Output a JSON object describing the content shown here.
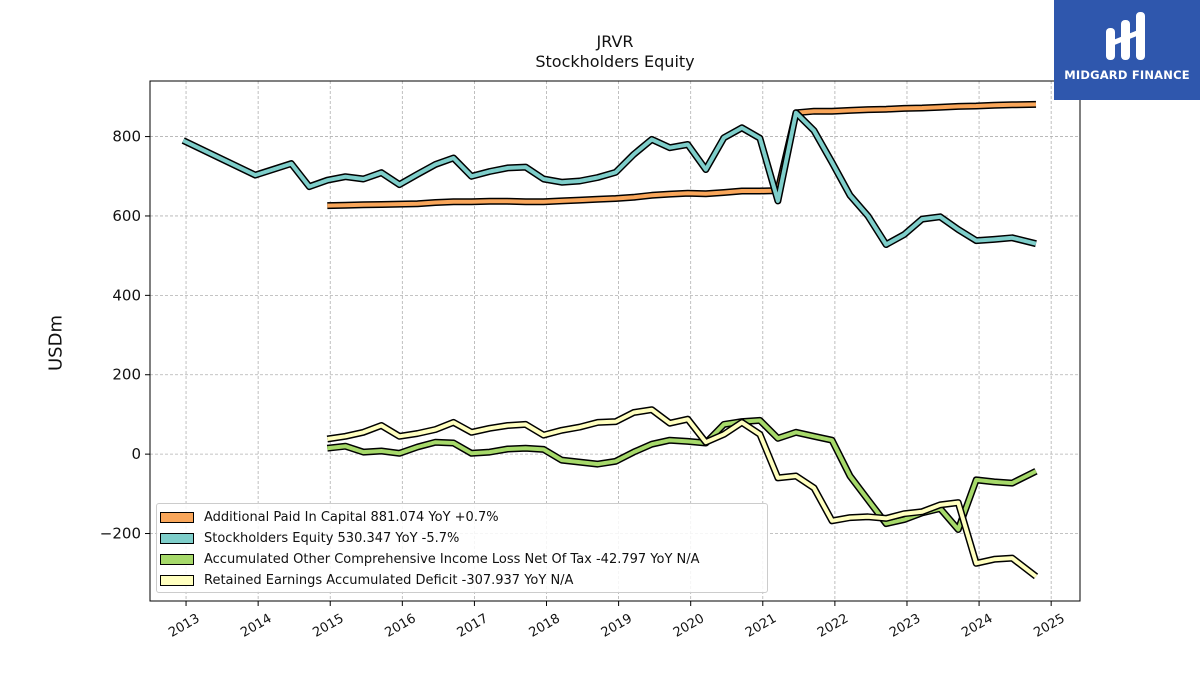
{
  "header": {
    "title": "JRVR",
    "subtitle": "Stockholders  Equity",
    "ylabel": "USDm"
  },
  "logo": {
    "name": "MIDGARD FINANCE",
    "icon": "midgard-logo-icon",
    "color": "#2f57ad"
  },
  "chart_data": {
    "type": "line",
    "title": "JRVR",
    "subtitle": "Stockholders  Equity",
    "xlabel": "",
    "ylabel": "USDm",
    "xlim": [
      2012.5,
      2025.4
    ],
    "ylim": [
      -370,
      940
    ],
    "x_ticks": [
      2013,
      2014,
      2015,
      2016,
      2017,
      2018,
      2019,
      2020,
      2021,
      2022,
      2023,
      2024,
      2025
    ],
    "y_ticks": [
      -200,
      0,
      200,
      400,
      600,
      800
    ],
    "y_tick_labels": [
      "−200",
      "0",
      "200",
      "400",
      "600",
      "800"
    ],
    "grid": true,
    "legend_position": "lower-left",
    "series": [
      {
        "name": "Additional Paid In Capital",
        "legend": "Additional Paid In Capital  881.074 YoY +0.7%",
        "color": "#f9a65a",
        "points": [
          [
            2014.96,
            626
          ],
          [
            2015.21,
            627
          ],
          [
            2015.46,
            628
          ],
          [
            2015.71,
            629
          ],
          [
            2015.96,
            630
          ],
          [
            2016.21,
            631
          ],
          [
            2016.46,
            634
          ],
          [
            2016.71,
            636
          ],
          [
            2016.96,
            636
          ],
          [
            2017.21,
            637
          ],
          [
            2017.46,
            637
          ],
          [
            2017.71,
            636
          ],
          [
            2017.96,
            636
          ],
          [
            2018.21,
            638
          ],
          [
            2018.46,
            640
          ],
          [
            2018.71,
            642
          ],
          [
            2018.96,
            644
          ],
          [
            2019.21,
            647
          ],
          [
            2019.46,
            652
          ],
          [
            2019.71,
            655
          ],
          [
            2019.96,
            657
          ],
          [
            2020.21,
            656
          ],
          [
            2020.46,
            659
          ],
          [
            2020.71,
            663
          ],
          [
            2020.96,
            663
          ],
          [
            2021.21,
            664
          ],
          [
            2021.46,
            860
          ],
          [
            2021.71,
            864
          ],
          [
            2021.96,
            864
          ],
          [
            2022.21,
            866
          ],
          [
            2022.46,
            868
          ],
          [
            2022.71,
            869
          ],
          [
            2022.96,
            871
          ],
          [
            2023.21,
            872
          ],
          [
            2023.46,
            874
          ],
          [
            2023.71,
            876
          ],
          [
            2023.96,
            877
          ],
          [
            2024.21,
            879
          ],
          [
            2024.46,
            880
          ],
          [
            2024.79,
            881
          ]
        ]
      },
      {
        "name": "Stockholders Equity",
        "legend": "Stockholders Equity  530.347 YoY -5.7%",
        "color": "#7ececa",
        "points": [
          [
            2012.96,
            790
          ],
          [
            2013.96,
            703
          ],
          [
            2014.46,
            732
          ],
          [
            2014.71,
            674
          ],
          [
            2014.96,
            690
          ],
          [
            2015.21,
            699
          ],
          [
            2015.46,
            693
          ],
          [
            2015.71,
            709
          ],
          [
            2015.96,
            679
          ],
          [
            2016.21,
            705
          ],
          [
            2016.46,
            730
          ],
          [
            2016.71,
            746
          ],
          [
            2016.96,
            700
          ],
          [
            2017.21,
            712
          ],
          [
            2017.46,
            721
          ],
          [
            2017.71,
            723
          ],
          [
            2017.96,
            693
          ],
          [
            2018.21,
            685
          ],
          [
            2018.46,
            688
          ],
          [
            2018.71,
            697
          ],
          [
            2018.96,
            710
          ],
          [
            2019.21,
            755
          ],
          [
            2019.46,
            793
          ],
          [
            2019.71,
            772
          ],
          [
            2019.96,
            780
          ],
          [
            2020.21,
            717
          ],
          [
            2020.46,
            797
          ],
          [
            2020.71,
            822
          ],
          [
            2020.96,
            796
          ],
          [
            2021.21,
            638
          ],
          [
            2021.46,
            860
          ],
          [
            2021.71,
            815
          ],
          [
            2021.96,
            735
          ],
          [
            2022.21,
            652
          ],
          [
            2022.46,
            600
          ],
          [
            2022.71,
            528
          ],
          [
            2022.96,
            553
          ],
          [
            2023.21,
            592
          ],
          [
            2023.46,
            598
          ],
          [
            2023.71,
            566
          ],
          [
            2023.96,
            538
          ],
          [
            2024.21,
            541
          ],
          [
            2024.46,
            545
          ],
          [
            2024.79,
            530
          ]
        ]
      },
      {
        "name": "Accumulated Other Comprehensive Income Loss Net Of Tax",
        "legend": "Accumulated Other Comprehensive Income Loss Net Of Tax  -42.797 YoY N/A",
        "color": "#a6d96a",
        "points": [
          [
            2014.96,
            15
          ],
          [
            2015.21,
            20
          ],
          [
            2015.46,
            5
          ],
          [
            2015.71,
            8
          ],
          [
            2015.96,
            2
          ],
          [
            2016.21,
            18
          ],
          [
            2016.46,
            30
          ],
          [
            2016.71,
            28
          ],
          [
            2016.96,
            2
          ],
          [
            2017.21,
            5
          ],
          [
            2017.46,
            13
          ],
          [
            2017.71,
            15
          ],
          [
            2017.96,
            12
          ],
          [
            2018.21,
            -15
          ],
          [
            2018.46,
            -20
          ],
          [
            2018.71,
            -25
          ],
          [
            2018.96,
            -18
          ],
          [
            2019.21,
            5
          ],
          [
            2019.46,
            25
          ],
          [
            2019.71,
            35
          ],
          [
            2019.96,
            32
          ],
          [
            2020.21,
            28
          ],
          [
            2020.46,
            75
          ],
          [
            2020.71,
            82
          ],
          [
            2020.96,
            85
          ],
          [
            2021.21,
            40
          ],
          [
            2021.46,
            55
          ],
          [
            2021.71,
            45
          ],
          [
            2021.96,
            35
          ],
          [
            2022.21,
            -55
          ],
          [
            2022.46,
            -115
          ],
          [
            2022.71,
            -175
          ],
          [
            2022.96,
            -165
          ],
          [
            2023.21,
            -148
          ],
          [
            2023.46,
            -137
          ],
          [
            2023.71,
            -190
          ],
          [
            2023.96,
            -65
          ],
          [
            2024.21,
            -70
          ],
          [
            2024.46,
            -73
          ],
          [
            2024.79,
            -43
          ]
        ]
      },
      {
        "name": "Retained Earnings Accumulated Deficit",
        "legend": "Retained Earnings Accumulated Deficit  -307.937 YoY N/A",
        "color": "#ffffbf",
        "points": [
          [
            2014.96,
            38
          ],
          [
            2015.21,
            45
          ],
          [
            2015.46,
            55
          ],
          [
            2015.71,
            72
          ],
          [
            2015.96,
            45
          ],
          [
            2016.21,
            52
          ],
          [
            2016.46,
            62
          ],
          [
            2016.71,
            80
          ],
          [
            2016.96,
            55
          ],
          [
            2017.21,
            65
          ],
          [
            2017.46,
            72
          ],
          [
            2017.71,
            75
          ],
          [
            2017.96,
            48
          ],
          [
            2018.21,
            60
          ],
          [
            2018.46,
            68
          ],
          [
            2018.71,
            80
          ],
          [
            2018.96,
            82
          ],
          [
            2019.21,
            105
          ],
          [
            2019.46,
            112
          ],
          [
            2019.71,
            78
          ],
          [
            2019.96,
            88
          ],
          [
            2020.21,
            30
          ],
          [
            2020.46,
            50
          ],
          [
            2020.71,
            80
          ],
          [
            2020.96,
            50
          ],
          [
            2021.21,
            -60
          ],
          [
            2021.46,
            -55
          ],
          [
            2021.71,
            -85
          ],
          [
            2021.96,
            -168
          ],
          [
            2022.21,
            -160
          ],
          [
            2022.46,
            -158
          ],
          [
            2022.71,
            -162
          ],
          [
            2022.96,
            -150
          ],
          [
            2023.21,
            -145
          ],
          [
            2023.46,
            -128
          ],
          [
            2023.71,
            -122
          ],
          [
            2023.96,
            -275
          ],
          [
            2024.21,
            -265
          ],
          [
            2024.46,
            -262
          ],
          [
            2024.79,
            -308
          ]
        ]
      }
    ]
  }
}
